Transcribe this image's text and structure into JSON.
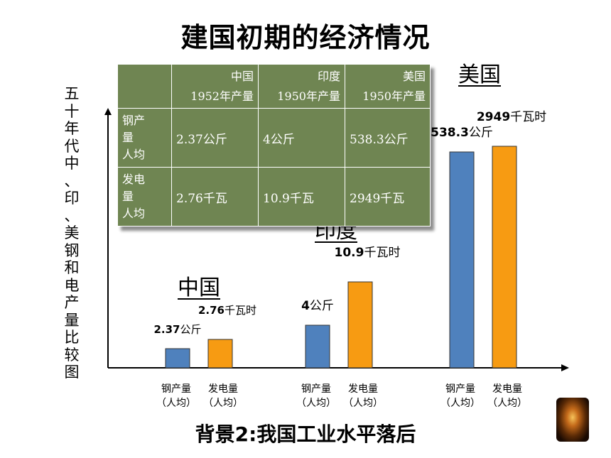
{
  "title": "建国初期的经济情况",
  "footer": "背景2:我国工业水平落后",
  "vertical_label": "五十年代中、印、美钢和电产量比较图",
  "table": {
    "headers": [
      "",
      "中国\n1952年产量",
      "印度\n1950年产量",
      "美国\n1950年产量"
    ],
    "rows": [
      [
        "钢产\n量\n人均",
        "2.37公斤",
        "4公斤",
        "538.3公斤"
      ],
      [
        "发电\n量\n人均",
        "2.76千瓦",
        "10.9千瓦",
        "2949千瓦"
      ]
    ]
  },
  "chart_data": {
    "type": "bar",
    "groups": [
      {
        "name": "中国",
        "bars": [
          {
            "label": "钢产量\n（人均）",
            "value_label": "2.37公斤",
            "value": 2.37,
            "color": "#4f81bd"
          },
          {
            "label": "发电量\n（人均）",
            "value_label": "2.76千瓦时",
            "value": 2.76,
            "color": "#f79b12"
          }
        ]
      },
      {
        "name": "印度",
        "bars": [
          {
            "label": "钢产量\n（人均）",
            "value_label": "4公斤",
            "value": 4,
            "color": "#4f81bd"
          },
          {
            "label": "发电量\n（人均）",
            "value_label": "10.9千瓦时",
            "value": 10.9,
            "color": "#f79b12"
          }
        ]
      },
      {
        "name": "美国",
        "bars": [
          {
            "label": "钢产量\n（人均）",
            "value_label": "538.3公斤",
            "value": 538.3,
            "color": "#4f81bd"
          },
          {
            "label": "发电量\n（人均）",
            "value_label": "2949千瓦时",
            "value": 2949,
            "color": "#f79b12"
          }
        ]
      }
    ],
    "scale": "non-linear (illustrative)",
    "axes": "x and y arrows, no ticks"
  }
}
